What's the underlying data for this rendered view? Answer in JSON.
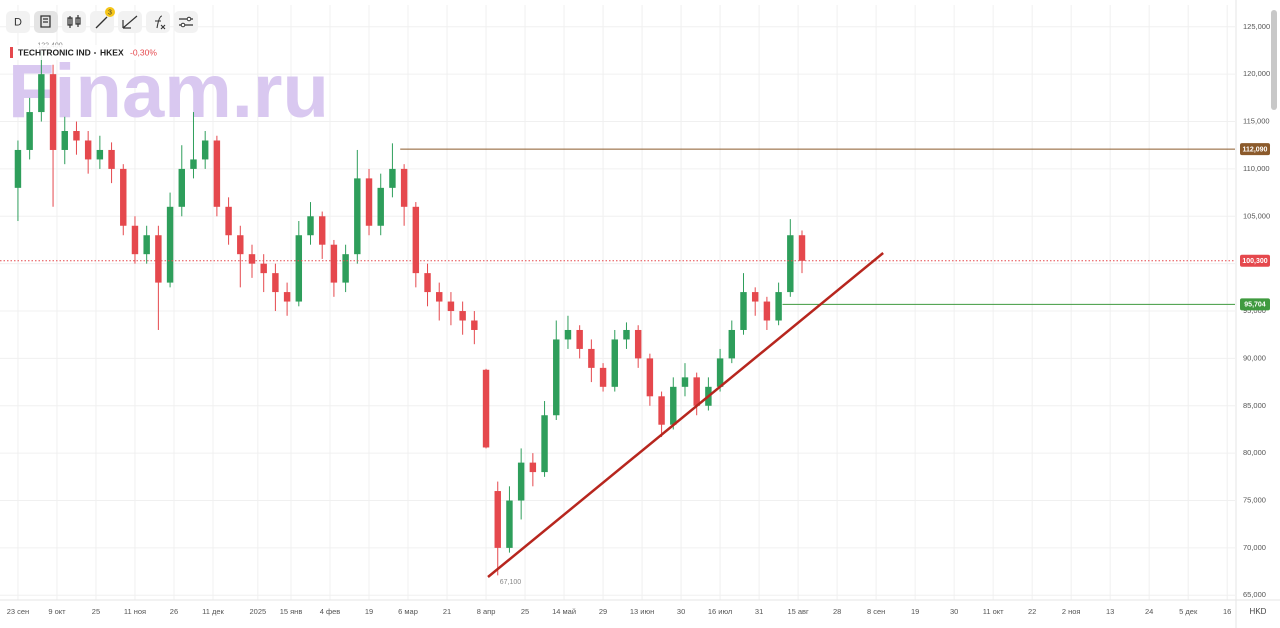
{
  "chart_data": {
    "type": "candlestick",
    "toolbar": {
      "interval": "D",
      "badge": "3"
    },
    "legend": {
      "instrument": "TECHTRONIC IND",
      "exchange": "HKEX",
      "change": {
        "value": -0.3,
        "label": "-0,30%"
      }
    },
    "watermark": "Finam.ru",
    "currency": "HKD",
    "up_color": "#2e9e5b",
    "down_color": "#e5484d",
    "x": [
      0,
      3,
      6,
      9,
      12,
      15,
      18,
      21,
      24,
      27,
      30,
      33,
      36,
      39,
      42,
      45,
      48,
      51,
      54,
      57,
      60,
      63,
      66,
      69,
      72,
      75,
      78,
      81,
      84,
      87,
      90,
      93,
      96,
      99,
      102,
      105,
      108,
      111,
      114,
      117,
      120,
      123,
      126,
      129,
      132,
      135,
      138,
      141,
      144,
      147,
      150,
      153,
      156,
      159,
      162,
      165,
      168,
      171,
      174,
      177,
      180,
      183,
      186,
      189,
      192,
      195,
      198,
      201
    ],
    "open": [
      108000,
      112000,
      116000,
      120000,
      112000,
      114000,
      113000,
      111000,
      112000,
      110000,
      104000,
      101000,
      103000,
      98000,
      106000,
      110000,
      111000,
      113000,
      106000,
      103000,
      101000,
      100000,
      99000,
      97000,
      96000,
      103000,
      105000,
      102000,
      98000,
      101000,
      109000,
      104000,
      108000,
      110000,
      106000,
      99000,
      97000,
      96000,
      95000,
      94000,
      88800,
      76000,
      70000,
      75000,
      79000,
      78000,
      84000,
      92000,
      93000,
      91000,
      89000,
      87000,
      92000,
      93000,
      90000,
      86000,
      83000,
      87000,
      88000,
      85000,
      87000,
      90000,
      93000,
      97000,
      96000,
      94000,
      97000,
      103000
    ],
    "high": [
      113000,
      117500,
      122400,
      121000,
      115500,
      115000,
      114000,
      113500,
      112800,
      110500,
      105000,
      104000,
      104000,
      107500,
      112500,
      116000,
      114000,
      113500,
      107000,
      104000,
      102000,
      101000,
      100000,
      98000,
      104500,
      106500,
      105500,
      102500,
      102000,
      112000,
      110000,
      109500,
      112700,
      110500,
      106500,
      100000,
      98000,
      97000,
      96000,
      95000,
      88900,
      77000,
      76500,
      80500,
      80000,
      85500,
      94000,
      94500,
      93500,
      92000,
      89500,
      93000,
      93800,
      93500,
      90500,
      86500,
      88000,
      89500,
      88500,
      88000,
      91000,
      94000,
      99000,
      97500,
      96500,
      98000,
      104700,
      103500
    ],
    "low": [
      104500,
      111000,
      115000,
      106000,
      110500,
      111500,
      109500,
      110000,
      108500,
      103000,
      100000,
      100000,
      93000,
      97500,
      105000,
      109000,
      110000,
      105000,
      102000,
      97500,
      98500,
      97000,
      95000,
      94500,
      95500,
      102000,
      100500,
      96500,
      97000,
      100000,
      103000,
      103000,
      107000,
      104000,
      97500,
      95500,
      94000,
      93500,
      92500,
      91500,
      80500,
      67100,
      69500,
      73000,
      76500,
      77500,
      83500,
      91000,
      90000,
      87500,
      86500,
      86500,
      91000,
      89000,
      85000,
      81700,
      82500,
      86000,
      84000,
      84500,
      86500,
      89500,
      92500,
      94500,
      93000,
      93500,
      96500,
      99000
    ],
    "close": [
      112000,
      116000,
      120000,
      112000,
      114000,
      113000,
      111000,
      112000,
      110000,
      104000,
      101000,
      103000,
      98000,
      106000,
      110000,
      111000,
      113000,
      106000,
      103000,
      101000,
      100000,
      99000,
      97000,
      96000,
      103000,
      105000,
      102000,
      98000,
      101000,
      109000,
      104000,
      108000,
      110000,
      106000,
      99000,
      97000,
      96000,
      95000,
      94000,
      93000,
      80600,
      70000,
      75000,
      79000,
      78000,
      84000,
      92000,
      93000,
      91000,
      89000,
      87000,
      92000,
      93000,
      90000,
      86000,
      83000,
      87000,
      88000,
      85000,
      87000,
      90000,
      93000,
      97000,
      96000,
      94000,
      97000,
      103000,
      100300
    ],
    "max_label": {
      "value": 122400,
      "label": "122,400"
    },
    "min_label": {
      "value": 67100,
      "label": "67,100"
    },
    "levels": [
      {
        "value": 112090,
        "label": "112,090",
        "color": "#8b5a2b",
        "style": "solid",
        "x_from": 98
      },
      {
        "value": 100300,
        "label": "100,300",
        "color": "#e5484d",
        "style": "dotted",
        "x_from": -4.6
      },
      {
        "value": 95704,
        "label": "95,704",
        "color": "#3f9a3f",
        "style": "solid",
        "x_from": 196
      }
    ],
    "trendline": {
      "x": [
        120.5,
        221.8
      ],
      "y": [
        66927,
        101124
      ],
      "color": "#b7261e"
    },
    "xlim": [
      -4.6,
      312
    ],
    "xticks": [
      {
        "value": 0,
        "label": "23 сен"
      },
      {
        "value": 10,
        "label": "9 окт"
      },
      {
        "value": 20,
        "label": "25"
      },
      {
        "value": 30,
        "label": "11 ноя"
      },
      {
        "value": 40,
        "label": "26"
      },
      {
        "value": 50,
        "label": "11 дек"
      },
      {
        "value": 61.5,
        "label": "2025"
      },
      {
        "value": 70,
        "label": "15 янв"
      },
      {
        "value": 80,
        "label": "4 фев"
      },
      {
        "value": 90,
        "label": "19"
      },
      {
        "value": 100,
        "label": "6 мар"
      },
      {
        "value": 110,
        "label": "21"
      },
      {
        "value": 120,
        "label": "8 апр"
      },
      {
        "value": 130,
        "label": "25"
      },
      {
        "value": 140,
        "label": "14 май"
      },
      {
        "value": 150,
        "label": "29"
      },
      {
        "value": 160,
        "label": "13 июн"
      },
      {
        "value": 170,
        "label": "30"
      },
      {
        "value": 180,
        "label": "16 июл"
      },
      {
        "value": 190,
        "label": "31"
      },
      {
        "value": 200,
        "label": "15 авг"
      },
      {
        "value": 210,
        "label": "28"
      },
      {
        "value": 220,
        "label": "8 сен"
      },
      {
        "value": 230,
        "label": "19"
      },
      {
        "value": 240,
        "label": "30"
      },
      {
        "value": 250,
        "label": "11 окт"
      },
      {
        "value": 260,
        "label": "22"
      },
      {
        "value": 270,
        "label": "2 ноя"
      },
      {
        "value": 280,
        "label": "13"
      },
      {
        "value": 290,
        "label": "24"
      },
      {
        "value": 300,
        "label": "5 дек"
      },
      {
        "value": 310,
        "label": "16"
      }
    ],
    "ylim": [
      64500,
      127300
    ],
    "yticks": [
      {
        "value": 65000,
        "label": "65,000"
      },
      {
        "value": 70000,
        "label": "70,000"
      },
      {
        "value": 75000,
        "label": "75,000"
      },
      {
        "value": 80000,
        "label": "80,000"
      },
      {
        "value": 85000,
        "label": "85,000"
      },
      {
        "value": 90000,
        "label": "90,000"
      },
      {
        "value": 95000,
        "label": "95,000"
      },
      {
        "value": 100000,
        "label": "100,000"
      },
      {
        "value": 105000,
        "label": "105,000"
      },
      {
        "value": 110000,
        "label": "110,000"
      },
      {
        "value": 115000,
        "label": "115,000"
      },
      {
        "value": 120000,
        "label": "120,000"
      },
      {
        "value": 125000,
        "label": "125,000"
      }
    ],
    "grid": true
  }
}
